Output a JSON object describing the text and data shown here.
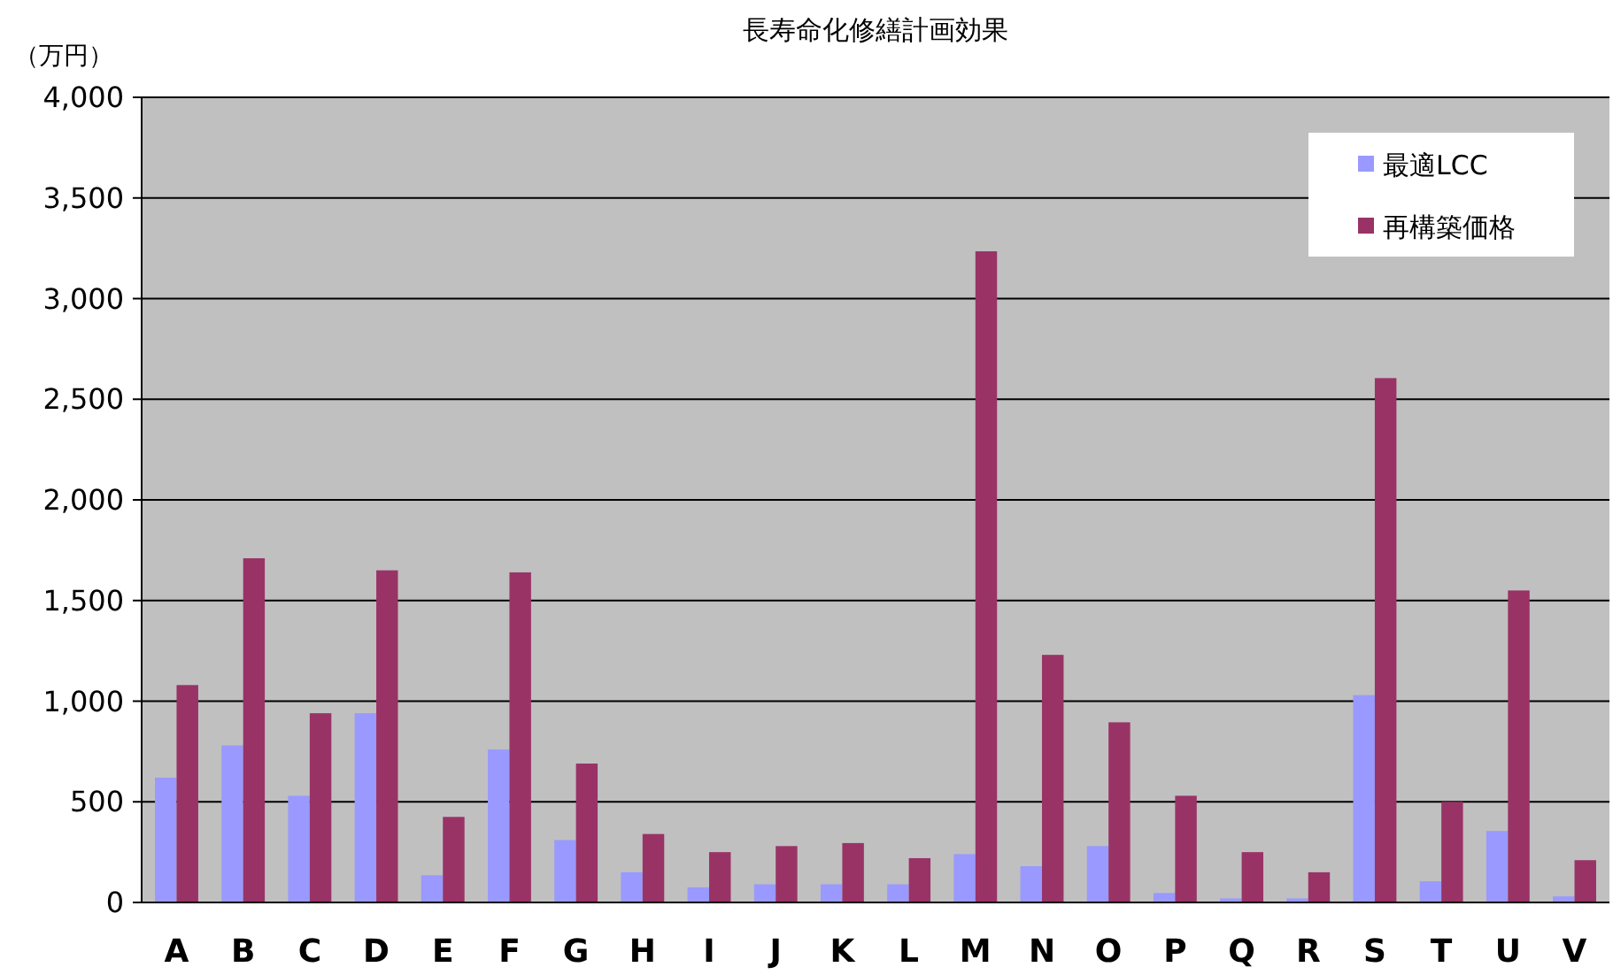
{
  "chart_data": {
    "type": "bar",
    "title": "長寿命化修繕計画効果",
    "ylabel": "（万円）",
    "categories": [
      "A",
      "B",
      "C",
      "D",
      "E",
      "F",
      "G",
      "H",
      "I",
      "J",
      "K",
      "L",
      "M",
      "N",
      "O",
      "P",
      "Q",
      "R",
      "S",
      "T",
      "U",
      "V"
    ],
    "series": [
      {
        "name": "最適LCC",
        "color": "#9999ff",
        "values": [
          620,
          780,
          530,
          940,
          135,
          760,
          310,
          150,
          75,
          90,
          90,
          90,
          240,
          180,
          280,
          47,
          20,
          20,
          1030,
          105,
          355,
          30
        ]
      },
      {
        "name": "再構築価格",
        "color": "#993366",
        "values": [
          1080,
          1710,
          940,
          1650,
          425,
          1640,
          690,
          340,
          250,
          280,
          295,
          220,
          3235,
          1230,
          895,
          530,
          250,
          150,
          2605,
          500,
          1550,
          210
        ]
      }
    ],
    "ylim": [
      0,
      4000
    ],
    "yticks": [
      {
        "value": 0,
        "label": "0"
      },
      {
        "value": 500,
        "label": "500"
      },
      {
        "value": 1000,
        "label": "1,000"
      },
      {
        "value": 1500,
        "label": "1,500"
      },
      {
        "value": 2000,
        "label": "2,000"
      },
      {
        "value": 2500,
        "label": "2,500"
      },
      {
        "value": 3000,
        "label": "3,000"
      },
      {
        "value": 3500,
        "label": "3,500"
      },
      {
        "value": 4000,
        "label": "4,000"
      }
    ],
    "grid": "y",
    "legend": "top right"
  }
}
